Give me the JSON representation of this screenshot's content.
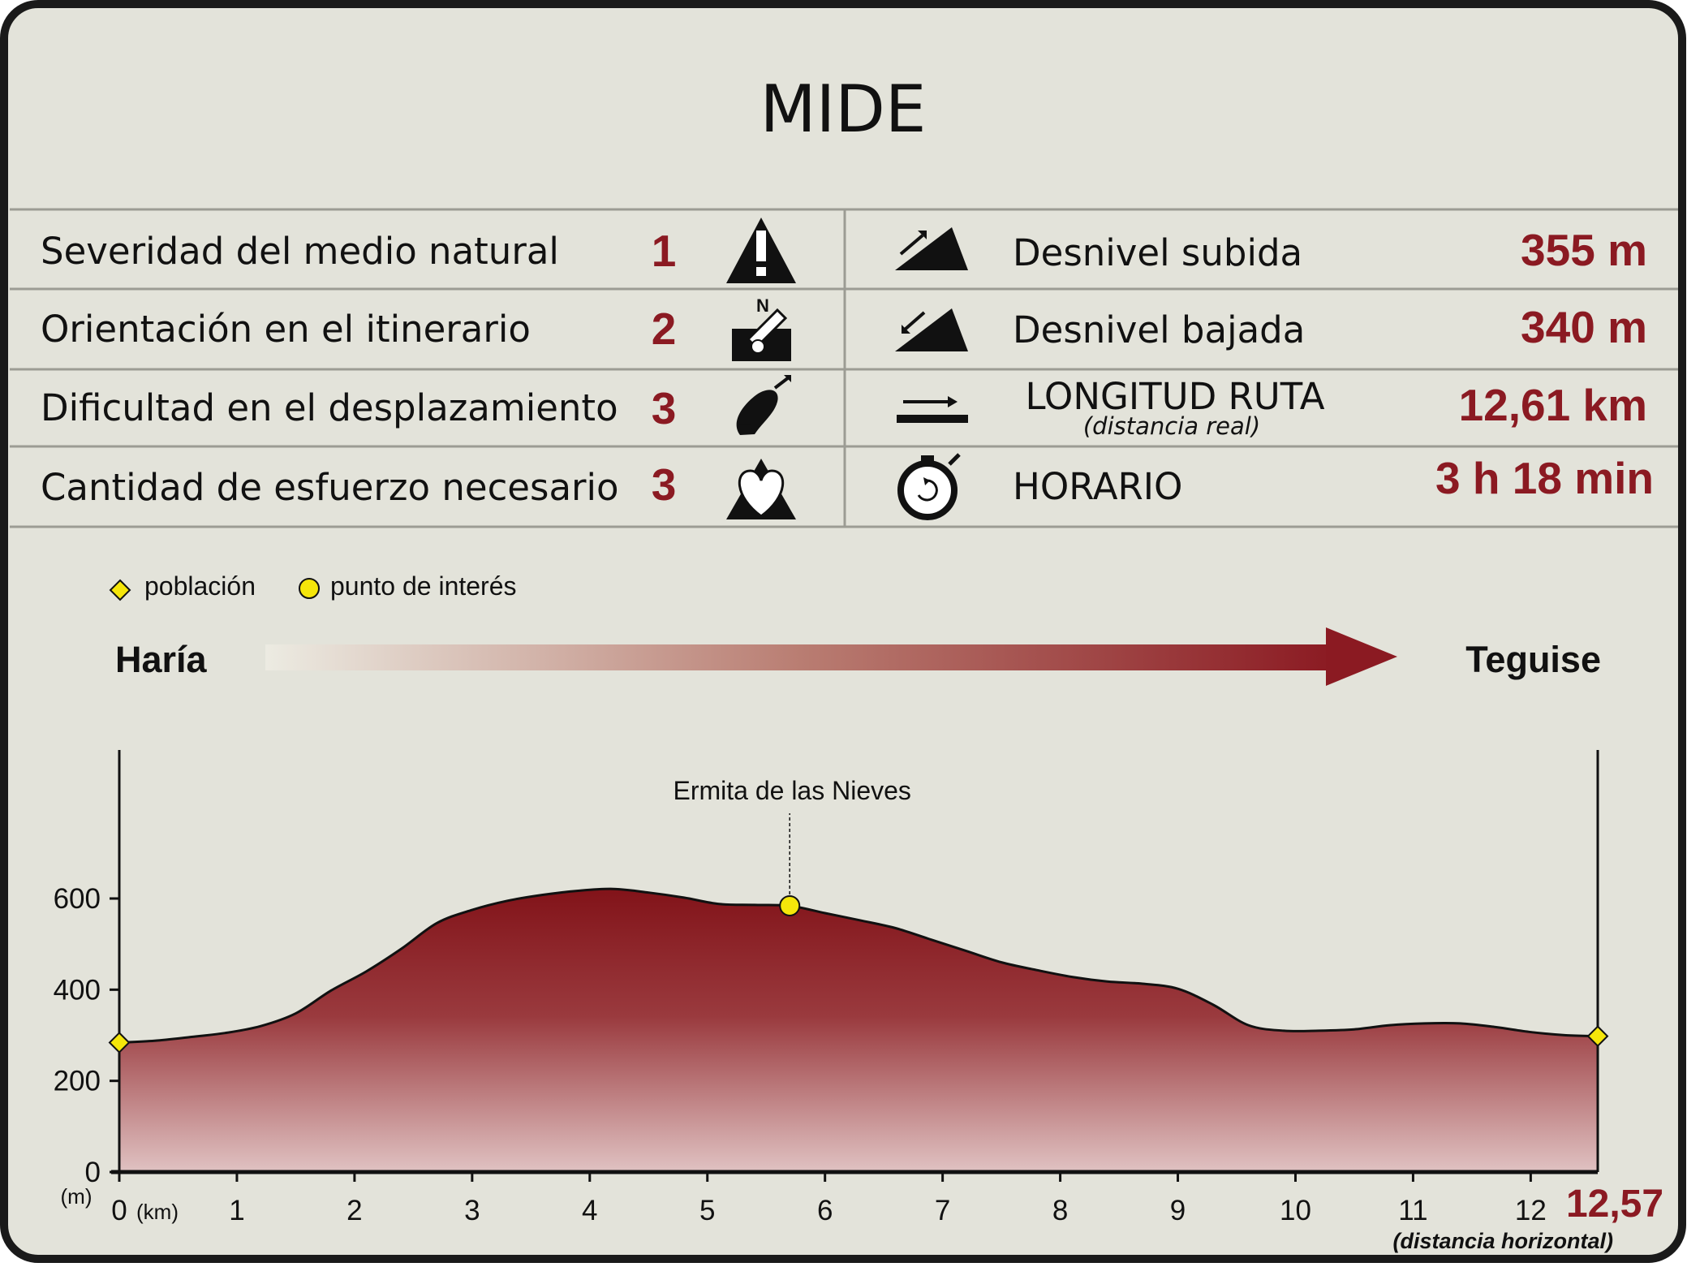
{
  "title": "MIDE",
  "mide": [
    {
      "label": "Severidad del medio natural",
      "value": "1",
      "icon": "warning-mountain-icon"
    },
    {
      "label": "Orientación en el itinerario",
      "value": "2",
      "icon": "compass-sign-icon"
    },
    {
      "label": "Dificultad en el desplazamiento",
      "value": "3",
      "icon": "footprint-icon"
    },
    {
      "label": "Cantidad de esfuerzo necesario",
      "value": "3",
      "icon": "heart-mountain-icon"
    }
  ],
  "stats": [
    {
      "label": "Desnivel subida",
      "value": "355 m",
      "icon": "ascent-icon"
    },
    {
      "label": "Desnivel bajada",
      "value": "340 m",
      "icon": "descent-icon"
    },
    {
      "label": "LONGITUD RUTA",
      "sublabel": "(distancia real)",
      "value": "12,61 km",
      "icon": "length-arrow-icon"
    },
    {
      "label": "HORARIO",
      "value": "3 h 18 min",
      "icon": "stopwatch-icon"
    }
  ],
  "legend": {
    "town": "población",
    "poi": "punto de interés"
  },
  "route": {
    "start": "Haría",
    "end": "Teguise"
  },
  "colors": {
    "accent": "#8b1a22",
    "background": "#e3e3da",
    "poi": "#f5e60a",
    "frame": "#1a1a1a"
  },
  "chart_data": {
    "type": "area",
    "xlim": [
      0,
      12.57
    ],
    "ylim": [
      0,
      600
    ],
    "x_ticks": [
      0,
      1,
      2,
      3,
      4,
      5,
      6,
      7,
      8,
      9,
      10,
      11,
      12
    ],
    "y_ticks": [
      0,
      200,
      400,
      600
    ],
    "x_unit": "(km)",
    "y_unit": "(m)",
    "end_label": "12,57",
    "end_note": "(distancia horizontal)",
    "x": [
      0,
      0.3,
      0.6,
      0.9,
      1.2,
      1.5,
      1.8,
      2.1,
      2.4,
      2.7,
      3.0,
      3.3,
      3.6,
      3.9,
      4.2,
      4.5,
      4.8,
      5.1,
      5.4,
      5.7,
      6.0,
      6.3,
      6.6,
      6.9,
      7.2,
      7.5,
      7.8,
      8.1,
      8.4,
      8.7,
      9.0,
      9.3,
      9.6,
      9.9,
      10.2,
      10.5,
      10.8,
      11.1,
      11.4,
      11.7,
      12.0,
      12.3,
      12.57
    ],
    "y": [
      284,
      288,
      296,
      305,
      320,
      348,
      398,
      440,
      490,
      546,
      575,
      595,
      608,
      617,
      621,
      613,
      602,
      588,
      586,
      584,
      568,
      552,
      535,
      510,
      485,
      460,
      443,
      428,
      418,
      413,
      402,
      367,
      322,
      310,
      310,
      313,
      322,
      326,
      326,
      318,
      307,
      300,
      298
    ],
    "markers": [
      {
        "type": "town",
        "x": 0,
        "y": 284
      },
      {
        "type": "poi",
        "x": 5.7,
        "y": 584,
        "label": "Ermita de las Nieves"
      },
      {
        "type": "town",
        "x": 12.57,
        "y": 298
      }
    ]
  }
}
